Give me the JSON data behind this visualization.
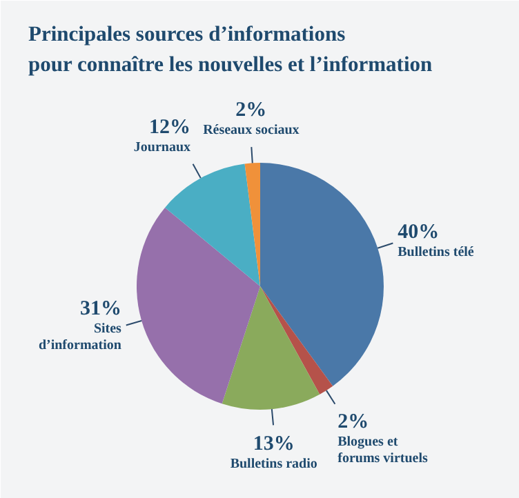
{
  "chart_data": {
    "type": "pie",
    "title": "Principales sources d’informations\npour connaître les nouvelles et l’information",
    "categories": [
      "Bulletins télé",
      "Blogues et forums virtuels",
      "Bulletins radio",
      "Sites d’information",
      "Journaux",
      "Réseaux sociaux"
    ],
    "values": [
      40,
      2,
      13,
      31,
      12,
      2
    ],
    "value_labels": [
      "40%",
      "2%",
      "13%",
      "31%",
      "12%",
      "2%"
    ],
    "colors": [
      "#4a78a8",
      "#b5524a",
      "#8aaa5c",
      "#9670ab",
      "#4aaec4",
      "#f0913a"
    ]
  }
}
